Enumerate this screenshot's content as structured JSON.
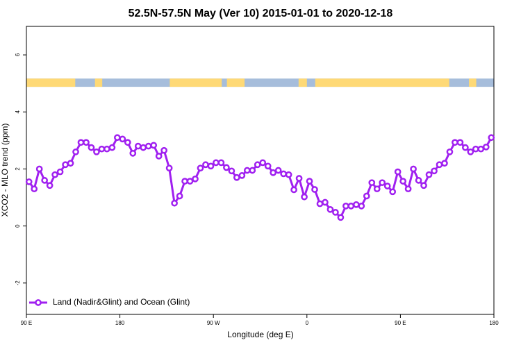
{
  "chart_data": {
    "type": "line",
    "title": "52.5N-57.5N May (Ver 10)   2015-01-01 to 2020-12-18",
    "xlabel": "Longitude (deg E)",
    "ylabel": "XCO2 - MLO trend (ppm)",
    "xlim": [
      90,
      540
    ],
    "ylim": [
      -3.1,
      7
    ],
    "xticks": [
      {
        "value": 90,
        "label": "90 E"
      },
      {
        "value": 180,
        "label": "180"
      },
      {
        "value": 270,
        "label": "90 W"
      },
      {
        "value": 360,
        "label": "0"
      },
      {
        "value": 450,
        "label": "90 E"
      },
      {
        "value": 540,
        "label": "180"
      }
    ],
    "yticks": [
      -2,
      0,
      2,
      4,
      6
    ],
    "legend": "bottom-left",
    "surface_band": {
      "ylim": [
        4.88,
        5.17
      ],
      "ocean_color": "#a6bddb",
      "land_color": "#fed976",
      "land": [
        [
          90,
          137
        ],
        [
          156,
          163
        ],
        [
          228,
          278
        ],
        [
          283,
          300
        ],
        [
          352,
          360
        ],
        [
          368,
          497
        ],
        [
          516,
          523
        ]
      ]
    },
    "x": [
      92.5,
      97.5,
      102.5,
      107.5,
      112.5,
      117.5,
      122.5,
      127.5,
      132.5,
      137.5,
      142.5,
      147.5,
      152.5,
      157.5,
      162.5,
      167.5,
      172.5,
      177.5,
      182.5,
      187.5,
      192.5,
      197.5,
      202.5,
      207.5,
      212.5,
      217.5,
      222.5,
      227.5,
      232.5,
      237.5,
      242.5,
      247.5,
      252.5,
      257.5,
      262.5,
      267.5,
      272.5,
      277.5,
      282.5,
      287.5,
      292.5,
      297.5,
      302.5,
      307.5,
      312.5,
      317.5,
      322.5,
      327.5,
      332.5,
      337.5,
      342.5,
      347.5,
      352.5,
      357.5,
      362.5,
      367.5,
      372.5,
      377.5,
      382.5,
      387.5,
      392.5,
      397.5,
      402.5,
      407.5,
      412.5,
      417.5,
      422.5,
      427.5,
      432.5,
      437.5,
      442.5,
      447.5,
      452.5,
      457.5,
      462.5,
      467.5,
      472.5,
      477.5,
      482.5,
      487.5,
      492.5,
      497.5,
      502.5,
      507.5,
      512.5,
      517.5,
      522.5,
      527.5,
      532.5,
      537.5
    ],
    "series": [
      {
        "name": "Land (Nadir&Glint) and Ocean (Glint)",
        "color": "#a020f0",
        "values": [
          1.55,
          1.3,
          2.0,
          1.6,
          1.42,
          1.8,
          1.9,
          2.15,
          2.2,
          2.6,
          2.93,
          2.93,
          2.75,
          2.6,
          2.7,
          2.7,
          2.75,
          3.1,
          3.05,
          2.93,
          2.55,
          2.8,
          2.75,
          2.8,
          2.83,
          2.45,
          2.65,
          2.03,
          0.8,
          1.05,
          1.57,
          1.57,
          1.65,
          2.03,
          2.15,
          2.1,
          2.22,
          2.22,
          2.05,
          1.93,
          1.7,
          1.77,
          1.95,
          1.95,
          2.15,
          2.22,
          2.1,
          1.87,
          1.95,
          1.83,
          1.8,
          1.27,
          1.67,
          1.02,
          1.57,
          1.28,
          0.78,
          0.83,
          0.58,
          0.48,
          0.3,
          0.7,
          0.7,
          0.75,
          0.7,
          1.05,
          1.52,
          1.3,
          1.52,
          1.4,
          1.2,
          1.9,
          1.57,
          1.3,
          2.0,
          1.6,
          1.42,
          1.8,
          1.93,
          2.15,
          2.2,
          2.6,
          2.93,
          2.93,
          2.75,
          2.6,
          2.7,
          2.7,
          2.77,
          3.1
        ]
      }
    ]
  }
}
